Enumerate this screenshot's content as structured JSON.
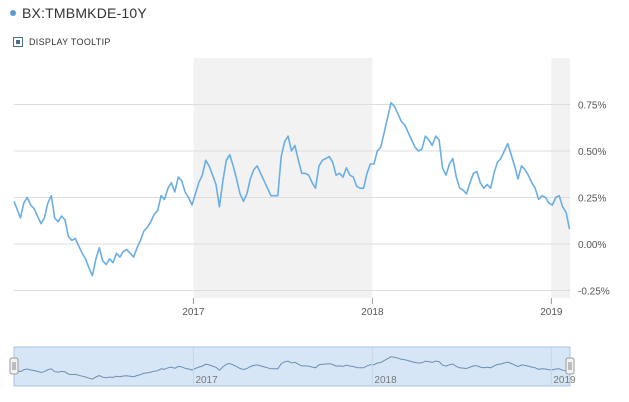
{
  "header": {
    "ticker": "BX:TMBMKDE-10Y"
  },
  "tooltip_toggle": {
    "label": "DISPLAY TOOLTIP",
    "checked": true
  },
  "colors": {
    "line": "#6aaee6",
    "shade": "#f2f2f2",
    "grid": "#dddddd",
    "navigator_fill": "#d6e6f7"
  },
  "chart_data": {
    "type": "line",
    "title": "",
    "xlabel": "",
    "ylabel": "",
    "x_tick_labels": [
      "2017",
      "2018",
      "2019"
    ],
    "y_tick_labels": [
      "0.75%",
      "0.50%",
      "0.25%",
      "0.00%",
      "-0.25%"
    ],
    "y_ticks": [
      0.75,
      0.5,
      0.25,
      0.0,
      -0.25
    ],
    "ylim": [
      -0.29,
      1.0
    ],
    "xlim": [
      "2016-01-01",
      "2019-02-08"
    ],
    "shaded_years": [
      "2017",
      "2019"
    ],
    "grid": true,
    "series": [
      {
        "values": [
          [
            "2016-01-01",
            0.23
          ],
          [
            "2016-01-07",
            0.19
          ],
          [
            "2016-01-14",
            0.14
          ],
          [
            "2016-01-21",
            0.22
          ],
          [
            "2016-01-28",
            0.25
          ],
          [
            "2016-02-04",
            0.21
          ],
          [
            "2016-02-11",
            0.19
          ],
          [
            "2016-02-18",
            0.15
          ],
          [
            "2016-02-25",
            0.11
          ],
          [
            "2016-03-03",
            0.14
          ],
          [
            "2016-03-10",
            0.22
          ],
          [
            "2016-03-17",
            0.26
          ],
          [
            "2016-03-24",
            0.14
          ],
          [
            "2016-03-31",
            0.12
          ],
          [
            "2016-04-07",
            0.15
          ],
          [
            "2016-04-14",
            0.13
          ],
          [
            "2016-04-21",
            0.04
          ],
          [
            "2016-04-28",
            0.02
          ],
          [
            "2016-05-05",
            0.03
          ],
          [
            "2016-05-12",
            -0.01
          ],
          [
            "2016-05-19",
            -0.05
          ],
          [
            "2016-05-26",
            -0.08
          ],
          [
            "2016-06-02",
            -0.13
          ],
          [
            "2016-06-09",
            -0.17
          ],
          [
            "2016-06-16",
            -0.08
          ],
          [
            "2016-06-23",
            -0.02
          ],
          [
            "2016-06-30",
            -0.09
          ],
          [
            "2016-07-07",
            -0.11
          ],
          [
            "2016-07-14",
            -0.08
          ],
          [
            "2016-07-21",
            -0.1
          ],
          [
            "2016-07-28",
            -0.05
          ],
          [
            "2016-08-04",
            -0.07
          ],
          [
            "2016-08-11",
            -0.04
          ],
          [
            "2016-08-18",
            -0.03
          ],
          [
            "2016-08-25",
            -0.05
          ],
          [
            "2016-09-01",
            -0.07
          ],
          [
            "2016-09-08",
            -0.02
          ],
          [
            "2016-09-15",
            0.02
          ],
          [
            "2016-09-22",
            0.07
          ],
          [
            "2016-09-29",
            0.09
          ],
          [
            "2016-10-06",
            0.12
          ],
          [
            "2016-10-13",
            0.16
          ],
          [
            "2016-10-20",
            0.18
          ],
          [
            "2016-10-27",
            0.26
          ],
          [
            "2016-11-03",
            0.24
          ],
          [
            "2016-11-10",
            0.3
          ],
          [
            "2016-11-17",
            0.33
          ],
          [
            "2016-11-24",
            0.28
          ],
          [
            "2016-12-01",
            0.36
          ],
          [
            "2016-12-08",
            0.34
          ],
          [
            "2016-12-15",
            0.28
          ],
          [
            "2016-12-22",
            0.25
          ],
          [
            "2016-12-29",
            0.21
          ],
          [
            "2017-01-05",
            0.27
          ],
          [
            "2017-01-12",
            0.33
          ],
          [
            "2017-01-19",
            0.37
          ],
          [
            "2017-01-26",
            0.45
          ],
          [
            "2017-02-02",
            0.42
          ],
          [
            "2017-02-09",
            0.37
          ],
          [
            "2017-02-16",
            0.32
          ],
          [
            "2017-02-23",
            0.2
          ],
          [
            "2017-03-02",
            0.34
          ],
          [
            "2017-03-09",
            0.45
          ],
          [
            "2017-03-16",
            0.48
          ],
          [
            "2017-03-23",
            0.42
          ],
          [
            "2017-03-30",
            0.35
          ],
          [
            "2017-04-06",
            0.27
          ],
          [
            "2017-04-13",
            0.23
          ],
          [
            "2017-04-20",
            0.27
          ],
          [
            "2017-04-27",
            0.35
          ],
          [
            "2017-05-04",
            0.4
          ],
          [
            "2017-05-11",
            0.42
          ],
          [
            "2017-05-18",
            0.38
          ],
          [
            "2017-05-25",
            0.34
          ],
          [
            "2017-06-01",
            0.3
          ],
          [
            "2017-06-08",
            0.26
          ],
          [
            "2017-06-15",
            0.26
          ],
          [
            "2017-06-22",
            0.26
          ],
          [
            "2017-06-29",
            0.47
          ],
          [
            "2017-07-06",
            0.55
          ],
          [
            "2017-07-13",
            0.58
          ],
          [
            "2017-07-20",
            0.5
          ],
          [
            "2017-07-27",
            0.53
          ],
          [
            "2017-08-03",
            0.45
          ],
          [
            "2017-08-10",
            0.38
          ],
          [
            "2017-08-17",
            0.38
          ],
          [
            "2017-08-24",
            0.37
          ],
          [
            "2017-08-31",
            0.33
          ],
          [
            "2017-09-07",
            0.3
          ],
          [
            "2017-09-14",
            0.42
          ],
          [
            "2017-09-21",
            0.45
          ],
          [
            "2017-09-28",
            0.46
          ],
          [
            "2017-10-05",
            0.47
          ],
          [
            "2017-10-12",
            0.44
          ],
          [
            "2017-10-19",
            0.37
          ],
          [
            "2017-10-26",
            0.38
          ],
          [
            "2017-11-02",
            0.36
          ],
          [
            "2017-11-09",
            0.41
          ],
          [
            "2017-11-16",
            0.37
          ],
          [
            "2017-11-23",
            0.36
          ],
          [
            "2017-11-30",
            0.31
          ],
          [
            "2017-12-07",
            0.3
          ],
          [
            "2017-12-14",
            0.3
          ],
          [
            "2017-12-21",
            0.38
          ],
          [
            "2017-12-28",
            0.43
          ],
          [
            "2018-01-04",
            0.43
          ],
          [
            "2018-01-11",
            0.5
          ],
          [
            "2018-01-18",
            0.52
          ],
          [
            "2018-01-25",
            0.6
          ],
          [
            "2018-02-01",
            0.68
          ],
          [
            "2018-02-08",
            0.76
          ],
          [
            "2018-02-15",
            0.74
          ],
          [
            "2018-02-22",
            0.7
          ],
          [
            "2018-03-01",
            0.66
          ],
          [
            "2018-03-08",
            0.64
          ],
          [
            "2018-03-15",
            0.6
          ],
          [
            "2018-03-22",
            0.56
          ],
          [
            "2018-03-29",
            0.52
          ],
          [
            "2018-04-05",
            0.5
          ],
          [
            "2018-04-12",
            0.51
          ],
          [
            "2018-04-19",
            0.58
          ],
          [
            "2018-04-26",
            0.56
          ],
          [
            "2018-05-03",
            0.53
          ],
          [
            "2018-05-10",
            0.58
          ],
          [
            "2018-05-17",
            0.56
          ],
          [
            "2018-05-24",
            0.41
          ],
          [
            "2018-05-31",
            0.37
          ],
          [
            "2018-06-07",
            0.43
          ],
          [
            "2018-06-14",
            0.46
          ],
          [
            "2018-06-21",
            0.36
          ],
          [
            "2018-06-28",
            0.3
          ],
          [
            "2018-07-05",
            0.29
          ],
          [
            "2018-07-12",
            0.27
          ],
          [
            "2018-07-19",
            0.33
          ],
          [
            "2018-07-26",
            0.38
          ],
          [
            "2018-08-02",
            0.39
          ],
          [
            "2018-08-09",
            0.33
          ],
          [
            "2018-08-16",
            0.3
          ],
          [
            "2018-08-23",
            0.32
          ],
          [
            "2018-08-30",
            0.3
          ],
          [
            "2018-09-06",
            0.38
          ],
          [
            "2018-09-13",
            0.44
          ],
          [
            "2018-09-20",
            0.46
          ],
          [
            "2018-09-27",
            0.5
          ],
          [
            "2018-10-04",
            0.54
          ],
          [
            "2018-10-11",
            0.48
          ],
          [
            "2018-10-18",
            0.42
          ],
          [
            "2018-10-25",
            0.35
          ],
          [
            "2018-11-01",
            0.42
          ],
          [
            "2018-11-08",
            0.4
          ],
          [
            "2018-11-15",
            0.37
          ],
          [
            "2018-11-22",
            0.33
          ],
          [
            "2018-11-29",
            0.3
          ],
          [
            "2018-12-06",
            0.24
          ],
          [
            "2018-12-13",
            0.26
          ],
          [
            "2018-12-20",
            0.25
          ],
          [
            "2018-12-27",
            0.22
          ],
          [
            "2019-01-03",
            0.21
          ],
          [
            "2019-01-10",
            0.25
          ],
          [
            "2019-01-17",
            0.26
          ],
          [
            "2019-01-24",
            0.2
          ],
          [
            "2019-01-31",
            0.17
          ],
          [
            "2019-02-07",
            0.08
          ]
        ]
      }
    ]
  }
}
